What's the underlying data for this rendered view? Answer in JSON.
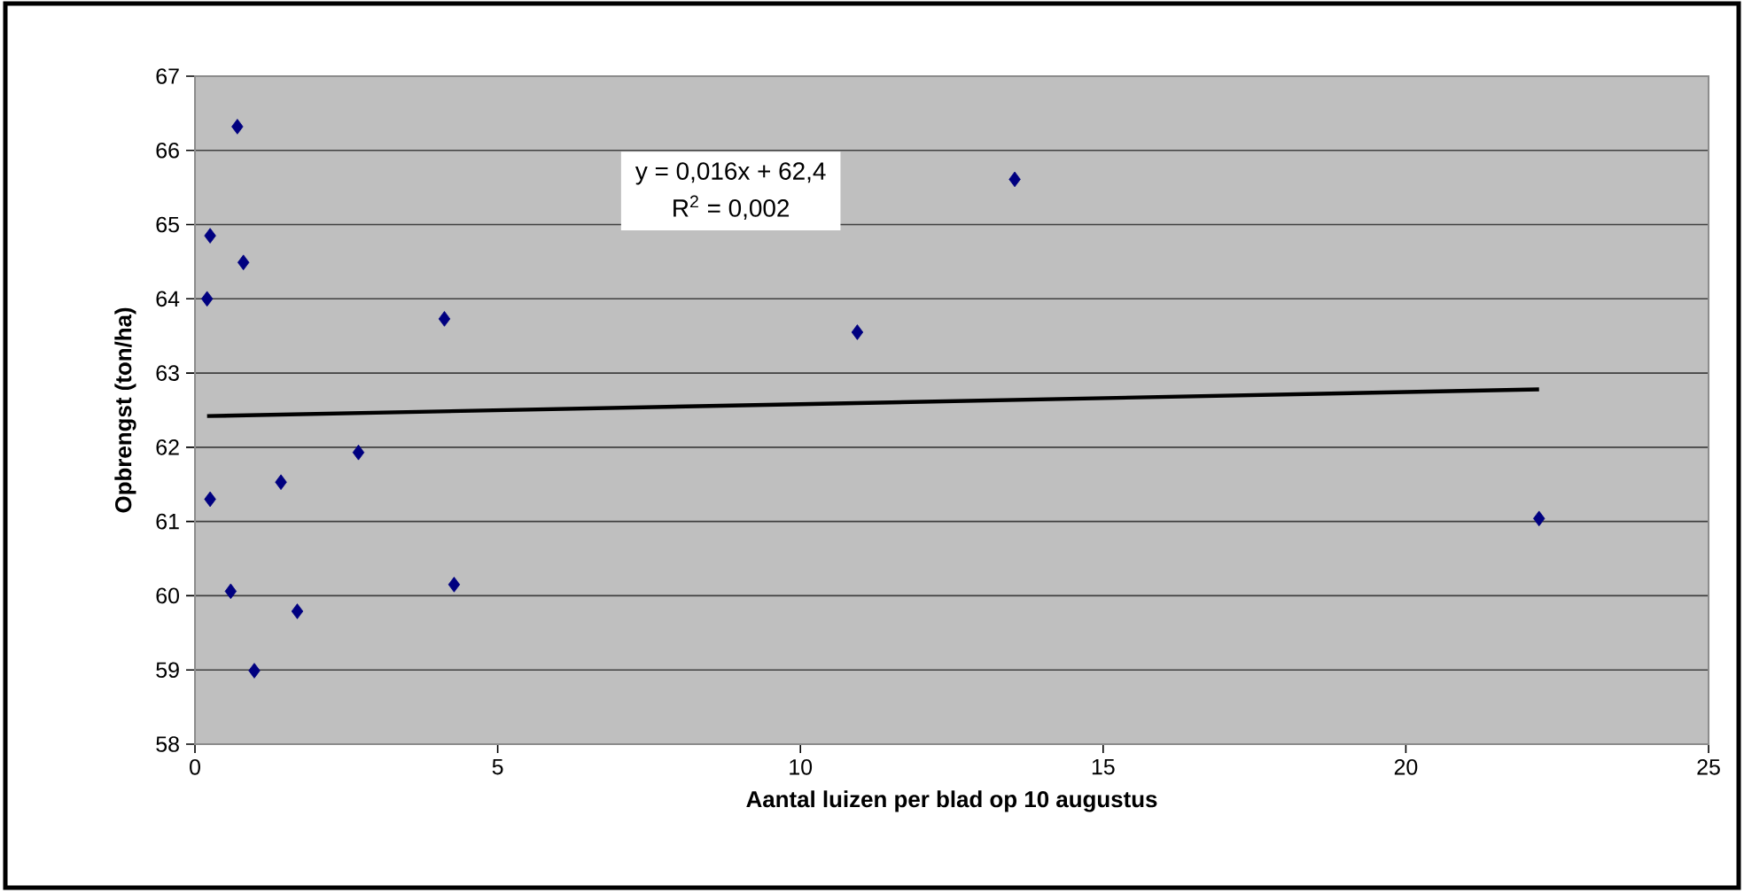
{
  "chart_data": {
    "type": "scatter",
    "xlabel": "Aantal luizen per blad op 10 augustus",
    "ylabel": "Opbrengst (ton/ha)",
    "xlim": [
      0,
      25
    ],
    "xticks": [
      0,
      5,
      10,
      15,
      20,
      25
    ],
    "ylim": [
      58,
      67
    ],
    "yticks": [
      58,
      59,
      60,
      61,
      62,
      63,
      64,
      65,
      66,
      67
    ],
    "grid": "y",
    "marker": "diamond",
    "series": [
      {
        "color": "#000080",
        "x": [
          0.7,
          0.25,
          0.8,
          0.2,
          4.12,
          10.94,
          0.25,
          1.42,
          2.7,
          0.59,
          1.69,
          0.98,
          4.28,
          13.54,
          22.2
        ],
        "values": [
          66.32,
          64.85,
          64.49,
          64.0,
          63.73,
          63.55,
          61.3,
          61.53,
          61.93,
          60.06,
          59.79,
          58.99,
          60.15,
          65.61,
          61.04
        ]
      },
      {
        "type": "line",
        "color": "#000000",
        "marker": "none",
        "x": [
          0.2,
          22.2
        ],
        "values": [
          62.42,
          62.78
        ]
      }
    ],
    "annotations": [
      "y = 0,016x + 62,4",
      "R$^{2}$ = 0,002"
    ]
  }
}
